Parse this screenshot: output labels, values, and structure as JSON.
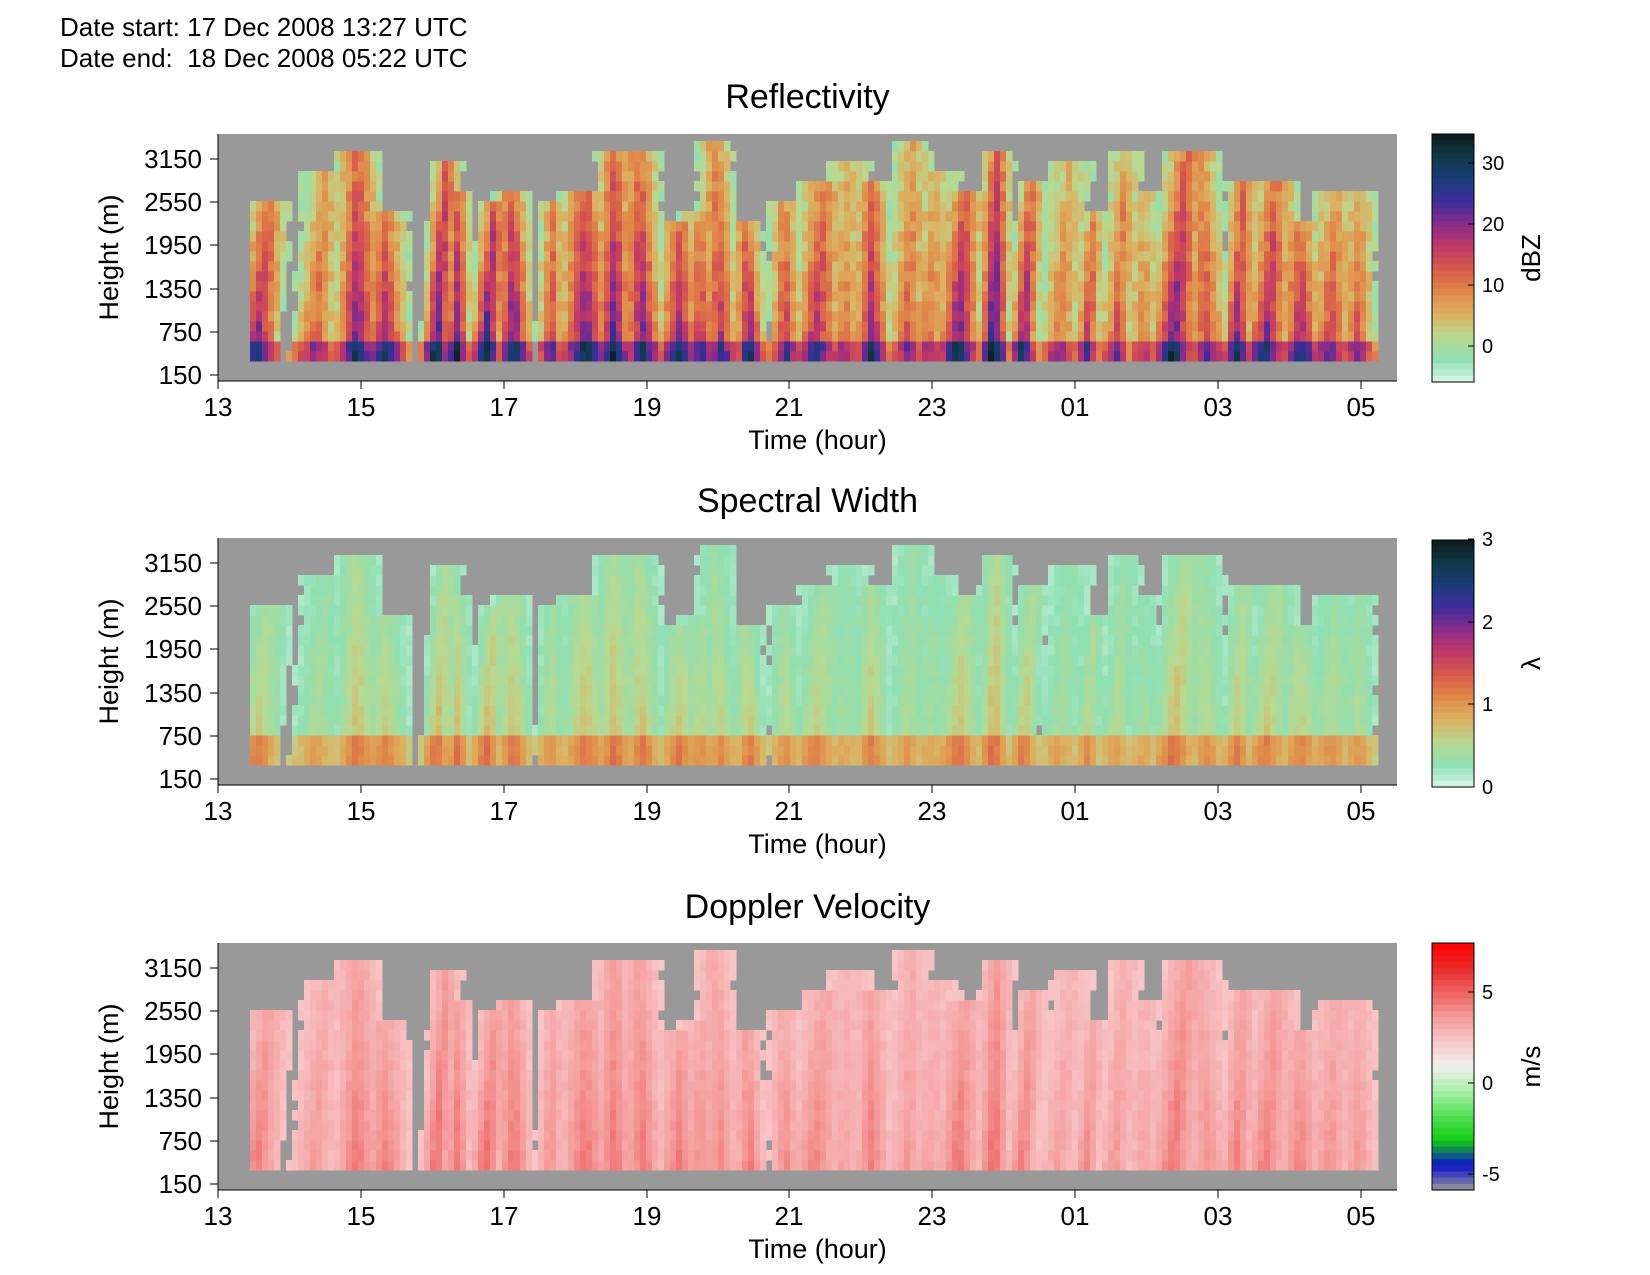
{
  "header": {
    "date_start": "Date start: 17 Dec 2008 13:27 UTC",
    "date_end": "Date end:  18 Dec 2008 05:22 UTC"
  },
  "chart_data": [
    {
      "type": "heatmap",
      "title": "Reflectivity",
      "xlabel": "Time (hour)",
      "ylabel": "Height (m)",
      "x_ticks": [
        "13",
        "15",
        "17",
        "19",
        "21",
        "23",
        "01",
        "03",
        "05"
      ],
      "y_ticks": [
        "150",
        "750",
        "1350",
        "1950",
        "2550",
        "3150"
      ],
      "colorbar_label": "dBZ",
      "colorbar_ticks": [
        "0",
        "10",
        "20",
        "30"
      ],
      "colorbar_range": [
        -6,
        35
      ],
      "colormap": [
        "#d9f5e8",
        "#8fe0b4",
        "#b9d990",
        "#dcb060",
        "#e08848",
        "#d85a4c",
        "#c03868",
        "#8a2c8a",
        "#3c2c9a",
        "#1a3c7a",
        "#123846",
        "#0b1a1c"
      ],
      "nodata_color": "#999999",
      "grid": false
    },
    {
      "type": "heatmap",
      "title": "Spectral Width",
      "xlabel": "Time (hour)",
      "ylabel": "Height (m)",
      "x_ticks": [
        "13",
        "15",
        "17",
        "19",
        "21",
        "23",
        "01",
        "03",
        "05"
      ],
      "y_ticks": [
        "150",
        "750",
        "1350",
        "1950",
        "2550",
        "3150"
      ],
      "colorbar_label": "λ",
      "colorbar_ticks": [
        "0",
        "1",
        "2",
        "3"
      ],
      "colorbar_range": [
        0,
        3
      ],
      "colormap": [
        "#d9f5e8",
        "#8fe0b4",
        "#b9d990",
        "#dcb060",
        "#e08848",
        "#d85a4c",
        "#c03868",
        "#8a2c8a",
        "#3c2c9a",
        "#1a3c7a",
        "#123846",
        "#0b1a1c"
      ],
      "nodata_color": "#999999",
      "grid": false
    },
    {
      "type": "heatmap",
      "title": "Doppler Velocity",
      "xlabel": "Time (hour)",
      "ylabel": "Height (m)",
      "x_ticks": [
        "13",
        "15",
        "17",
        "19",
        "21",
        "23",
        "01",
        "03",
        "05"
      ],
      "y_ticks": [
        "150",
        "750",
        "1350",
        "1950",
        "2550",
        "3150"
      ],
      "colorbar_label": "m/s",
      "colorbar_ticks": [
        "5",
        "0",
        "-5"
      ],
      "colorbar_range": [
        -6,
        8
      ],
      "colormap": [
        "#999999",
        "#0a10cc",
        "#12cc12",
        "#55e055",
        "#a8f0a8",
        "#f0f0f0",
        "#f8c8c8",
        "#f49a9a",
        "#ee6262",
        "#e82828",
        "#ff0000"
      ],
      "nodata_color": "#999999",
      "grid": false
    }
  ]
}
